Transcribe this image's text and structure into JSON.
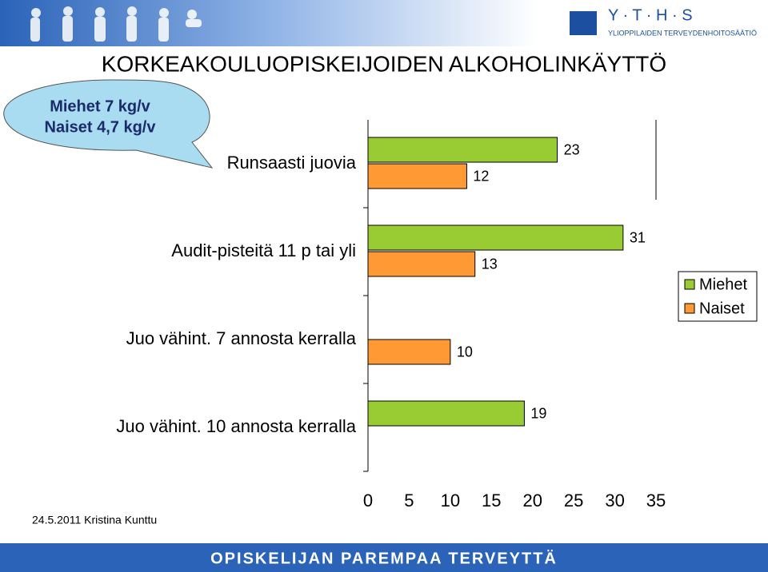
{
  "header": {
    "logo_letters": "Y · T · H · S",
    "logo_subtitle": "YLIOPPILAIDEN TERVEYDENHOITOSÄÄTIÖ"
  },
  "callout": {
    "lines": [
      "Miehet 7 kg/v",
      "Naiset 4,7 kg/v"
    ]
  },
  "chart_data": {
    "type": "hbar",
    "title": "KORKEAKOULUOPISKEIJOIDEN ALKOHOLINKÄYTTÖ",
    "categories": [
      "Runsaasti juovia",
      "Audit-pisteitä 11 p tai yli",
      "Juo vähint. 7 annosta kerralla",
      "Juo vähint. 10 annosta kerralla"
    ],
    "series": [
      {
        "name": "Miehet",
        "color": "#99cc33",
        "values": [
          23,
          31,
          null,
          19
        ]
      },
      {
        "name": "Naiset",
        "color": "#ff9933",
        "values": [
          12,
          13,
          10,
          null
        ]
      }
    ],
    "xlim": [
      0,
      35
    ],
    "xticks": [
      0,
      5,
      10,
      15,
      20,
      25,
      30,
      35
    ],
    "legend": "right"
  },
  "footer": {
    "date_author": "24.5.2011 Kristina Kunttu",
    "slogan": "OPISKELIJAN PAREMPAA TERVEYTTÄ"
  }
}
